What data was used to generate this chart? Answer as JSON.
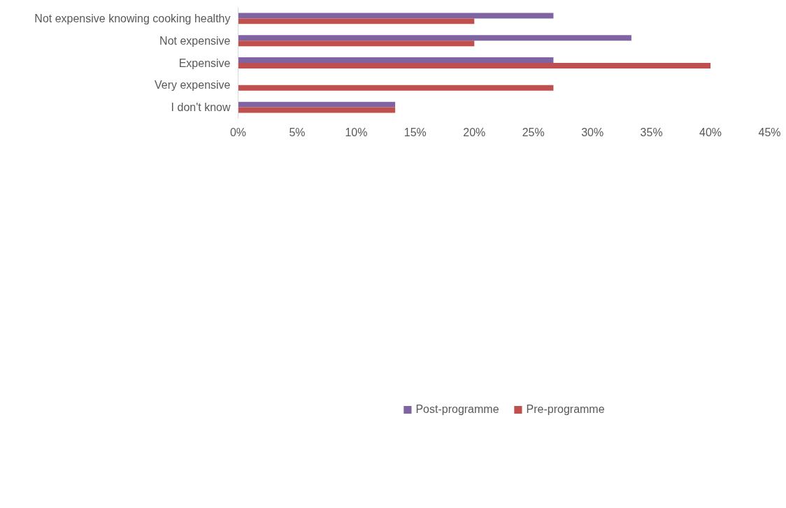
{
  "chart_data": {
    "type": "bar",
    "orientation": "horizontal",
    "categories": [
      "Not expensive knowing cooking healthy",
      "Not expensive",
      "Expensive",
      "Very expensive",
      "I don't know"
    ],
    "series": [
      {
        "name": "Post-programme",
        "color": "#8064a2",
        "values": [
          26.7,
          33.3,
          26.7,
          0,
          13.3
        ]
      },
      {
        "name": "Pre-programme",
        "color": "#c0504d",
        "values": [
          20,
          20,
          40,
          26.7,
          13.3
        ]
      }
    ],
    "xlim": [
      0,
      45
    ],
    "xticks": [
      {
        "value": 0,
        "label": "0%"
      },
      {
        "value": 5,
        "label": "5%"
      },
      {
        "value": 10,
        "label": "10%"
      },
      {
        "value": 15,
        "label": "15%"
      },
      {
        "value": 20,
        "label": "20%"
      },
      {
        "value": 25,
        "label": "25%"
      },
      {
        "value": 30,
        "label": "30%"
      },
      {
        "value": 35,
        "label": "35%"
      },
      {
        "value": 40,
        "label": "40%"
      },
      {
        "value": 45,
        "label": "45%"
      }
    ],
    "grid": false,
    "legend": "bottom"
  }
}
